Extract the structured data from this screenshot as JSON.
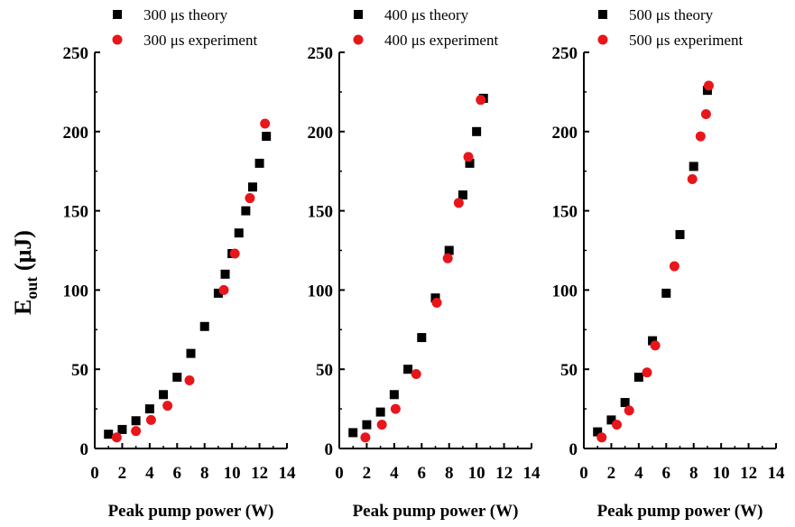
{
  "chart_data": [
    {
      "type": "scatter",
      "xlabel": "Peak pump power (W)",
      "ylabel_main": "E",
      "ylabel_sub": "out",
      "ylabel_unit": " (μJ)",
      "xlim": [
        0,
        14
      ],
      "ylim": [
        0,
        250
      ],
      "xticks": [
        0,
        2,
        4,
        6,
        8,
        10,
        12,
        14
      ],
      "yticks": [
        0,
        50,
        100,
        150,
        200,
        250
      ],
      "grid": false,
      "legend_position": "top",
      "series": [
        {
          "name": "300 μs theory",
          "marker": "square",
          "color": "#000000",
          "points": [
            [
              1.0,
              9
            ],
            [
              2.0,
              12
            ],
            [
              3.0,
              17.5
            ],
            [
              4.0,
              25
            ],
            [
              5.0,
              34
            ],
            [
              6.0,
              45
            ],
            [
              7.0,
              60
            ],
            [
              8.0,
              77
            ],
            [
              9.0,
              98
            ],
            [
              9.5,
              110
            ],
            [
              10.0,
              123
            ],
            [
              10.5,
              136
            ],
            [
              11.0,
              150
            ],
            [
              11.5,
              165
            ],
            [
              12.0,
              180
            ],
            [
              12.5,
              197
            ]
          ]
        },
        {
          "name": "300 μs experiment",
          "marker": "circle",
          "color": "#e8161b",
          "points": [
            [
              1.6,
              7
            ],
            [
              3.0,
              11
            ],
            [
              4.1,
              18
            ],
            [
              5.3,
              27
            ],
            [
              6.9,
              43
            ],
            [
              9.4,
              100
            ],
            [
              10.2,
              123
            ],
            [
              11.3,
              158
            ],
            [
              12.4,
              205
            ]
          ]
        }
      ]
    },
    {
      "type": "scatter",
      "xlabel": "Peak pump power (W)",
      "xlim": [
        0,
        14
      ],
      "ylim": [
        0,
        250
      ],
      "xticks": [
        0,
        2,
        4,
        6,
        8,
        10,
        12,
        14
      ],
      "yticks": [
        0,
        50,
        100,
        150,
        200,
        250
      ],
      "grid": false,
      "legend_position": "top",
      "series": [
        {
          "name": "400 μs theory",
          "marker": "square",
          "color": "#000000",
          "points": [
            [
              1.0,
              10
            ],
            [
              2.0,
              15
            ],
            [
              3.0,
              23
            ],
            [
              4.0,
              34
            ],
            [
              5.0,
              50
            ],
            [
              6.0,
              70
            ],
            [
              7.0,
              95
            ],
            [
              8.0,
              125
            ],
            [
              9.0,
              160
            ],
            [
              9.5,
              180
            ],
            [
              10.0,
              200
            ],
            [
              10.5,
              221
            ]
          ]
        },
        {
          "name": "400 μs experiment",
          "marker": "circle",
          "color": "#e8161b",
          "points": [
            [
              1.9,
              7
            ],
            [
              3.1,
              15
            ],
            [
              4.1,
              25
            ],
            [
              5.6,
              47
            ],
            [
              7.1,
              92
            ],
            [
              7.9,
              120
            ],
            [
              8.7,
              155
            ],
            [
              9.4,
              184
            ],
            [
              10.3,
              220
            ]
          ]
        }
      ]
    },
    {
      "type": "scatter",
      "xlabel": "Peak pump power (W)",
      "xlim": [
        0,
        14
      ],
      "ylim": [
        0,
        250
      ],
      "xticks": [
        0,
        2,
        4,
        6,
        8,
        10,
        12,
        14
      ],
      "yticks": [
        0,
        50,
        100,
        150,
        200,
        250
      ],
      "grid": false,
      "legend_position": "top",
      "series": [
        {
          "name": "500 μs theory",
          "marker": "square",
          "color": "#000000",
          "points": [
            [
              1.0,
              10.5
            ],
            [
              2.0,
              18
            ],
            [
              3.0,
              29
            ],
            [
              4.0,
              45
            ],
            [
              5.0,
              68
            ],
            [
              6.0,
              98
            ],
            [
              7.0,
              135
            ],
            [
              8.0,
              178
            ],
            [
              9.0,
              226
            ]
          ]
        },
        {
          "name": "500 μs experiment",
          "marker": "circle",
          "color": "#e8161b",
          "points": [
            [
              1.3,
              7
            ],
            [
              2.4,
              15
            ],
            [
              3.3,
              24
            ],
            [
              4.6,
              48
            ],
            [
              5.2,
              65
            ],
            [
              6.6,
              115
            ],
            [
              7.9,
              170
            ],
            [
              8.5,
              197
            ],
            [
              8.9,
              211
            ],
            [
              9.1,
              229
            ]
          ]
        }
      ]
    }
  ]
}
